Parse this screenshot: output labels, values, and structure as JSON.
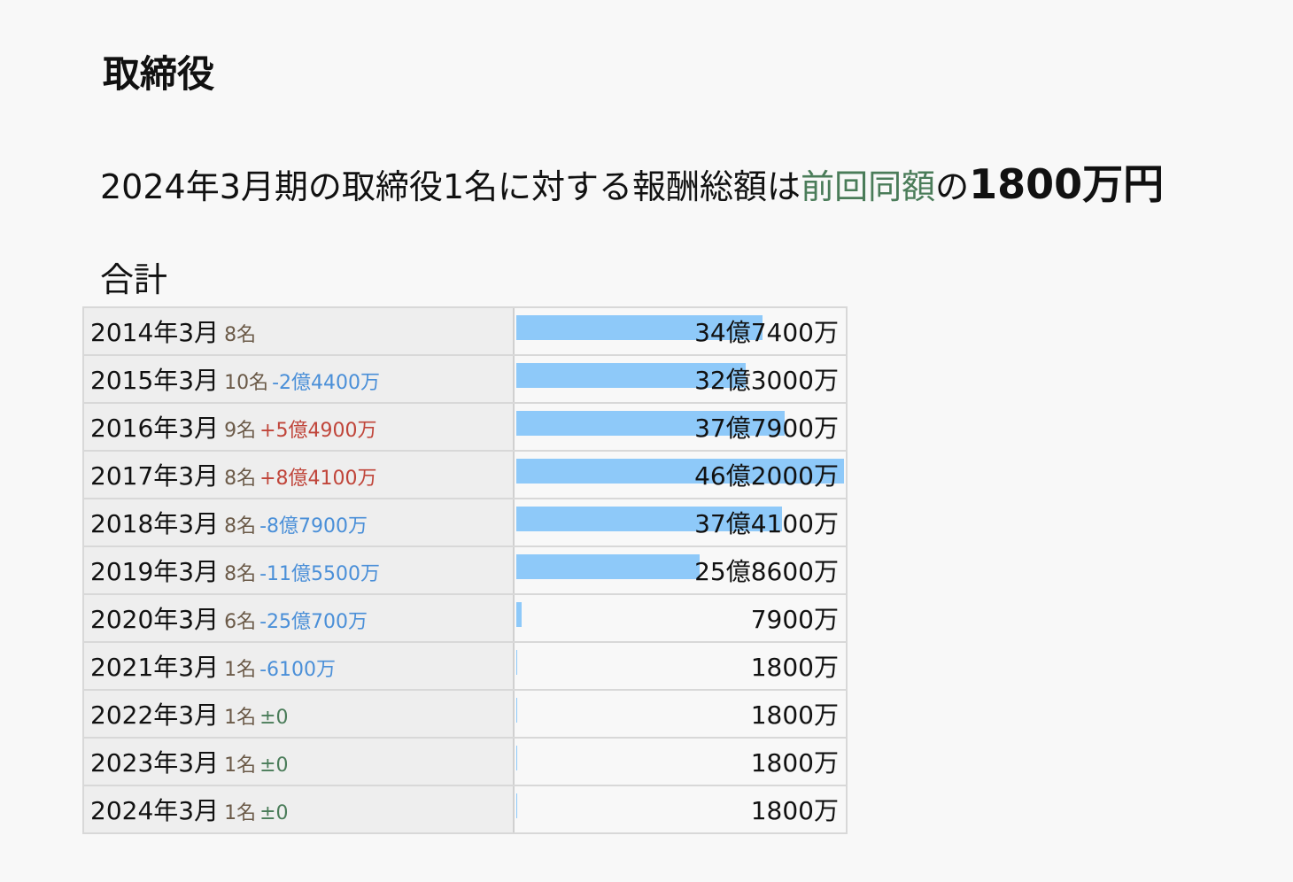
{
  "header": {
    "title": "取締役"
  },
  "summary": {
    "lead": "2024年3月期の取締役1名に対する報酬総額は",
    "highlight": "前回同額",
    "joiner": "の",
    "amount": "1800万円"
  },
  "section": {
    "title": "合計"
  },
  "table": {
    "rows": [
      {
        "period": "2014年3月",
        "count": "8名",
        "amount": {
          "value": 347400,
          "label": "34億7400万"
        }
      },
      {
        "period": "2015年3月",
        "count": "10名",
        "change": "-2億4400万",
        "amount": {
          "value": 323000,
          "label": "32億3000万"
        }
      },
      {
        "period": "2016年3月",
        "count": "9名",
        "change": "+5億4900万",
        "amount": {
          "value": 377900,
          "label": "37億7900万"
        }
      },
      {
        "period": "2017年3月",
        "count": "8名",
        "change": "+8億4100万",
        "amount": {
          "value": 462000,
          "label": "46億2000万"
        }
      },
      {
        "period": "2018年3月",
        "count": "8名",
        "change": "-8億7900万",
        "amount": {
          "value": 374100,
          "label": "37億4100万"
        }
      },
      {
        "period": "2019年3月",
        "count": "8名",
        "change": "-11億5500万",
        "amount": {
          "value": 258600,
          "label": "25億8600万"
        }
      },
      {
        "period": "2020年3月",
        "count": "6名",
        "change": "-25億700万",
        "amount": {
          "value": 7900,
          "label": "7900万"
        }
      },
      {
        "period": "2021年3月",
        "count": "1名",
        "change": "-6100万",
        "amount": {
          "value": 1800,
          "label": "1800万"
        }
      },
      {
        "period": "2022年3月",
        "count": "1名",
        "change": "±0",
        "amount": {
          "value": 1800,
          "label": "1800万"
        }
      },
      {
        "period": "2023年3月",
        "count": "1名",
        "change": "±0",
        "amount": {
          "value": 1800,
          "label": "1800万"
        }
      },
      {
        "period": "2024年3月",
        "count": "1名",
        "change": "±0",
        "amount": {
          "value": 1800,
          "label": "1800万"
        }
      }
    ]
  }
}
